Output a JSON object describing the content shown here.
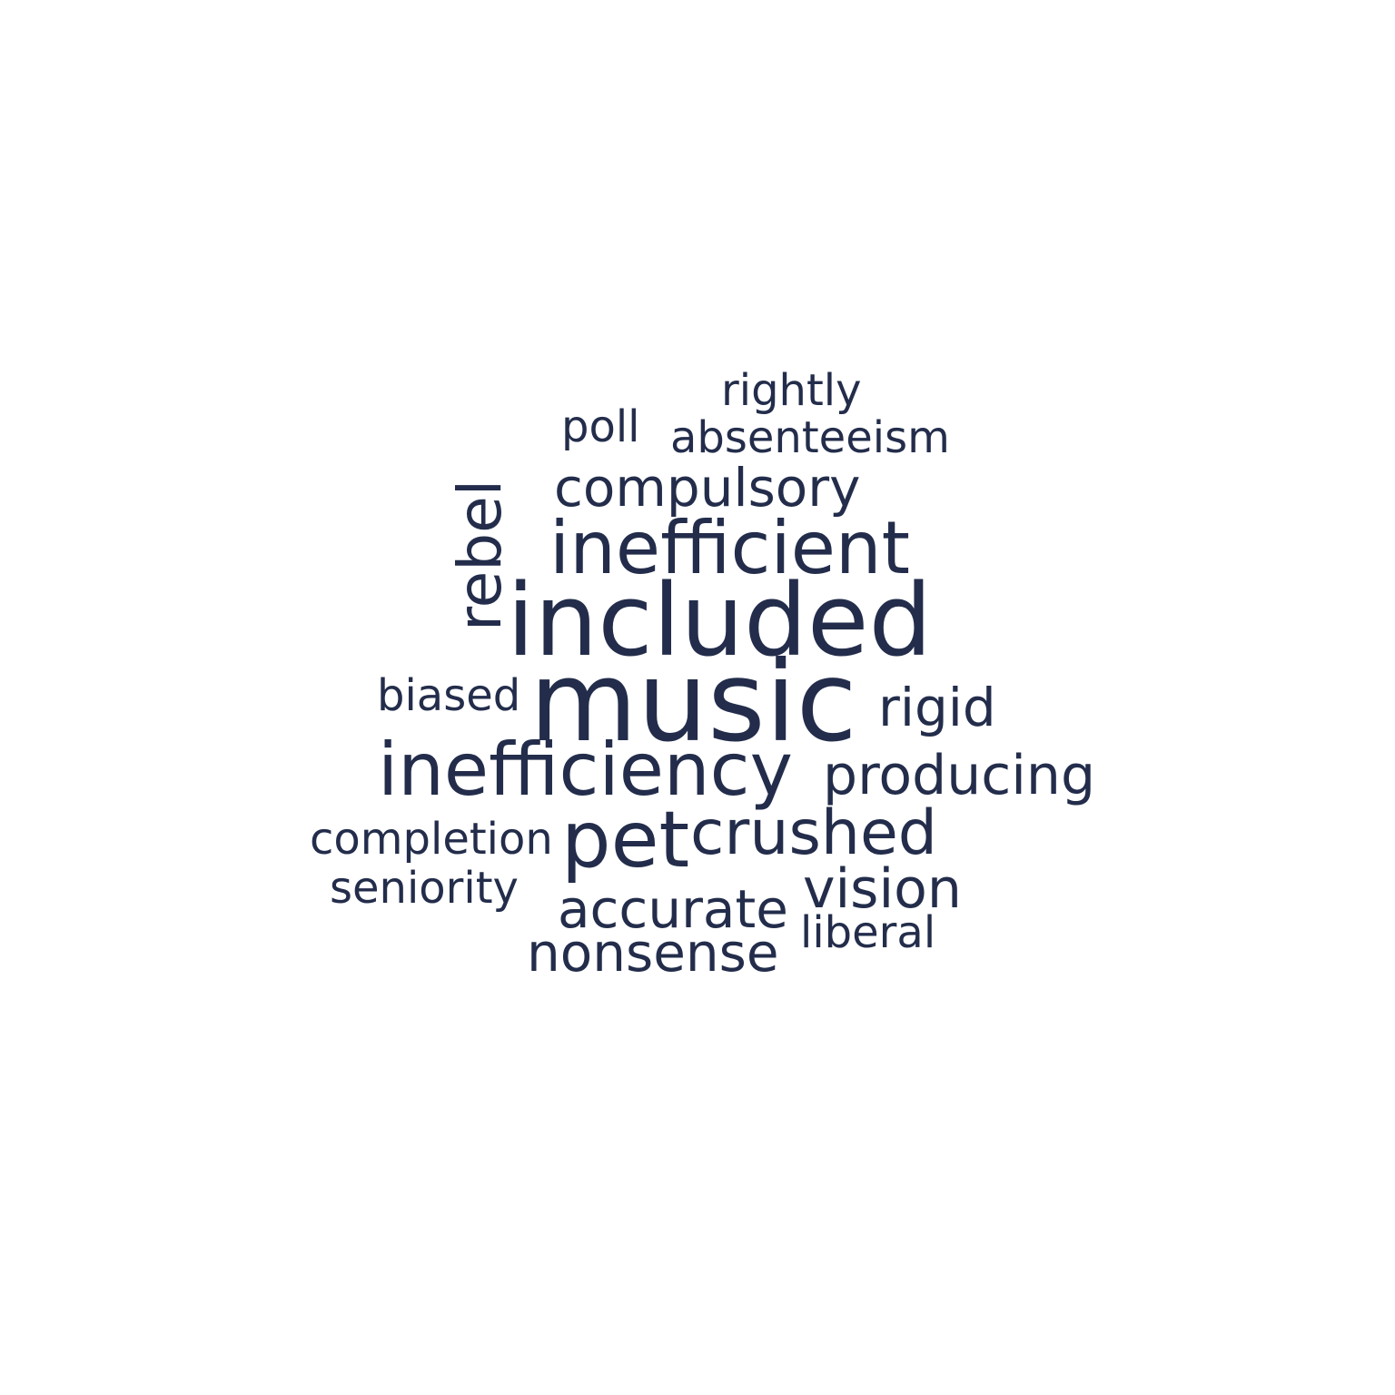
{
  "text_color": "#232d4b",
  "words": {
    "rightly": "rightly",
    "poll": "poll",
    "absenteeism": "absenteeism",
    "compulsory": "compulsory",
    "rebel": "rebel",
    "inefficient": "inefficient",
    "included": "included",
    "biased": "biased",
    "music": "music",
    "rigid": "rigid",
    "inefficiency": "inefficiency",
    "producing": "producing",
    "completion": "completion",
    "pet": "pet",
    "crushed": "crushed",
    "seniority": "seniority",
    "vision": "vision",
    "accurate": "accurate",
    "liberal": "liberal",
    "nonsense": "nonsense"
  }
}
